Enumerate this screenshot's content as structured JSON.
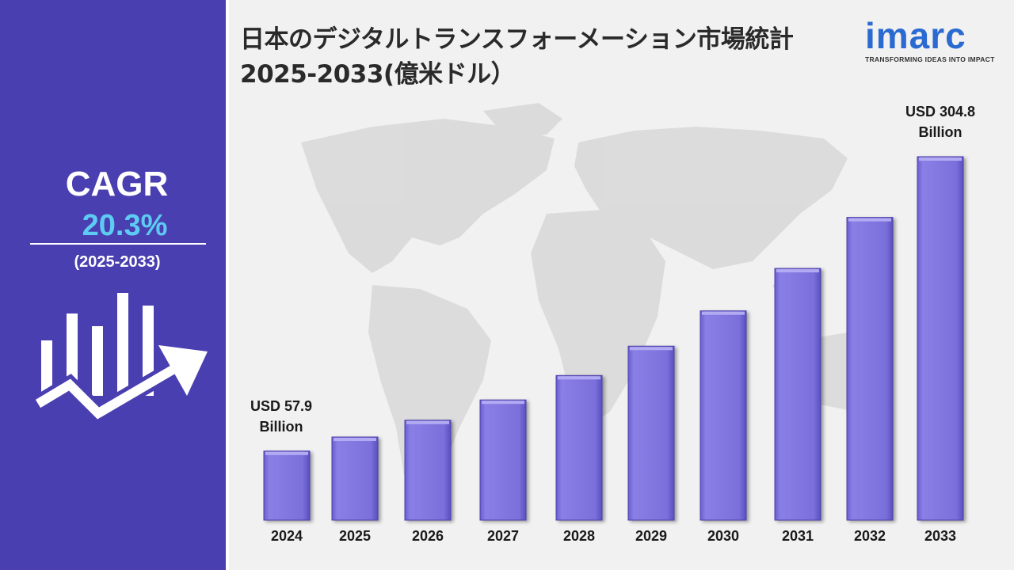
{
  "sidebar": {
    "cagr_label": "CAGR",
    "cagr_value": "20.3%",
    "cagr_period": "(2025-2033)"
  },
  "header": {
    "title": "日本のデジタルトランスフォーメーション市場統計 2025-2033(億米ドル）"
  },
  "logo": {
    "name": "imarc",
    "tagline": "TRANSFORMING IDEAS INTO IMPACT"
  },
  "colors": {
    "sidebar": "#4a3fb0",
    "bar": "#7b6fdb",
    "accent": "#5ecbf3",
    "logo": "#2b6bd1"
  },
  "chart_data": {
    "type": "bar",
    "categories": [
      "2024",
      "2025",
      "2026",
      "2027",
      "2028",
      "2029",
      "2030",
      "2031",
      "2032",
      "2033"
    ],
    "values": [
      57.9,
      69.7,
      83.8,
      100.8,
      121.3,
      145.9,
      175.5,
      211.1,
      253.9,
      304.8
    ],
    "title": "日本のデジタルトランスフォーメーション市場統計 2025-2033(億米ドル）",
    "ylim": [
      0,
      330
    ],
    "grid": false,
    "annotations": [
      {
        "category": "2024",
        "line1": "USD 57.9",
        "line2": "Billion"
      },
      {
        "category": "2033",
        "line1": "USD 304.8",
        "line2": "Billion"
      }
    ]
  }
}
